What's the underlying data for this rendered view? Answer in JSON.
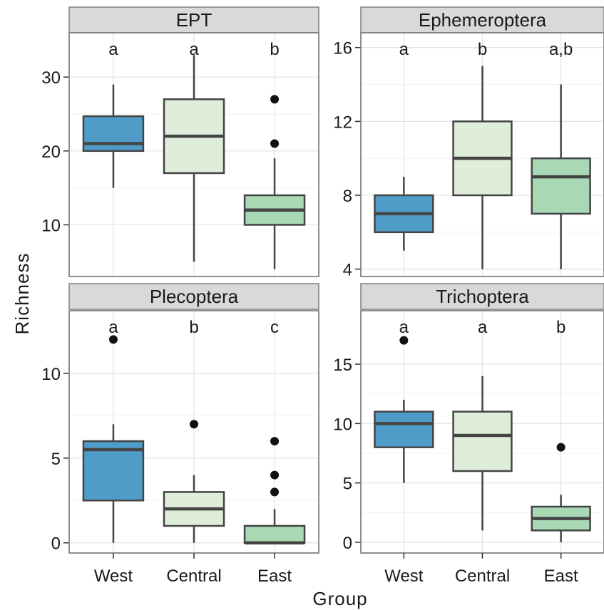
{
  "chart_data": {
    "type": "boxplot",
    "layout": "facet-2x2",
    "xlabel": "Group",
    "ylabel": "Richness",
    "categories": [
      "West",
      "Central",
      "East"
    ],
    "fill_colors": [
      "#4f9cc9",
      "#dfeedb",
      "#a8d8b4"
    ],
    "grid": true,
    "panels": [
      {
        "title": "EPT",
        "ylim": [
          3,
          36
        ],
        "yticks": [
          10,
          20,
          30
        ],
        "sig_letters": [
          "a",
          "a",
          "b"
        ],
        "boxes": [
          {
            "low": 15,
            "q1": 20,
            "median": 21,
            "q3": 24.7,
            "high": 29,
            "outliers": []
          },
          {
            "low": 5,
            "q1": 17,
            "median": 22,
            "q3": 27,
            "high": 33,
            "outliers": []
          },
          {
            "low": 4,
            "q1": 10,
            "median": 12,
            "q3": 14,
            "high": 19,
            "outliers": [
              21,
              27
            ]
          }
        ]
      },
      {
        "title": "Ephemeroptera",
        "ylim": [
          3.6,
          16.8
        ],
        "yticks": [
          4,
          8,
          12,
          16
        ],
        "sig_letters": [
          "a",
          "b",
          "a,b"
        ],
        "boxes": [
          {
            "low": 5,
            "q1": 6,
            "median": 7,
            "q3": 8,
            "high": 9,
            "outliers": []
          },
          {
            "low": 4,
            "q1": 8,
            "median": 10,
            "q3": 12,
            "high": 15,
            "outliers": []
          },
          {
            "low": 4,
            "q1": 7,
            "median": 9,
            "q3": 10,
            "high": 14,
            "outliers": []
          }
        ]
      },
      {
        "title": "Plecoptera",
        "ylim": [
          -0.6,
          13.7
        ],
        "yticks": [
          0,
          5,
          10
        ],
        "sig_letters": [
          "a",
          "b",
          "c"
        ],
        "boxes": [
          {
            "low": 0,
            "q1": 2.5,
            "median": 5.5,
            "q3": 6,
            "high": 7,
            "outliers": [
              12
            ]
          },
          {
            "low": 0,
            "q1": 1,
            "median": 2,
            "q3": 3,
            "high": 4,
            "outliers": [
              7
            ]
          },
          {
            "low": 0,
            "q1": 0,
            "median": 0,
            "q3": 1,
            "high": 2,
            "outliers": [
              3,
              4,
              6
            ]
          }
        ]
      },
      {
        "title": "Trichoptera",
        "ylim": [
          -0.9,
          19.5
        ],
        "yticks": [
          0,
          5,
          10,
          15
        ],
        "sig_letters": [
          "a",
          "a",
          "b"
        ],
        "boxes": [
          {
            "low": 5,
            "q1": 8,
            "median": 10,
            "q3": 11,
            "high": 12,
            "outliers": [
              17
            ]
          },
          {
            "low": 1,
            "q1": 6,
            "median": 9,
            "q3": 11,
            "high": 14,
            "outliers": []
          },
          {
            "low": 0,
            "q1": 1,
            "median": 2,
            "q3": 3,
            "high": 4,
            "outliers": [
              8
            ]
          }
        ]
      }
    ]
  }
}
